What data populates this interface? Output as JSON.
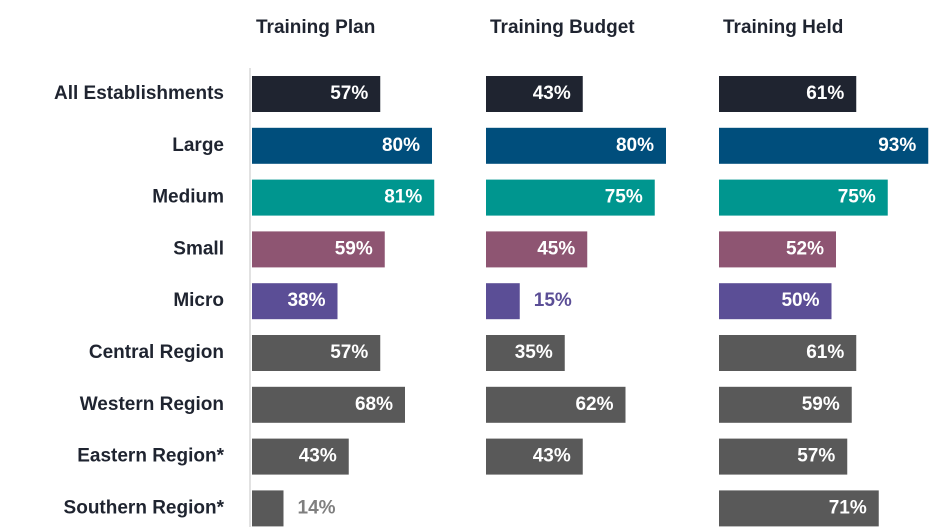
{
  "chart_data": {
    "type": "bar",
    "orientation": "horizontal",
    "xlim": [
      0,
      100
    ],
    "categories": [
      "All Establishments",
      "Large",
      "Medium",
      "Small",
      "Micro",
      "Central Region",
      "Western Region",
      "Eastern Region*",
      "Southern Region*"
    ],
    "colors": [
      "#1f2430",
      "#004e7c",
      "#00968f",
      "#8e5572",
      "#5b4e96",
      "#595959",
      "#595959",
      "#595959",
      "#595959"
    ],
    "series": [
      {
        "name": "Training Plan",
        "values": [
          57,
          80,
          81,
          59,
          38,
          57,
          68,
          43,
          14
        ],
        "value_labels": [
          "57%",
          "80%",
          "81%",
          "59%",
          "38%",
          "57%",
          "68%",
          "43%",
          "14%"
        ]
      },
      {
        "name": "Training Budget",
        "values": [
          43,
          80,
          75,
          45,
          15,
          35,
          62,
          43,
          null
        ],
        "value_labels": [
          "43%",
          "80%",
          "75%",
          "45%",
          "15%",
          "35%",
          "62%",
          "43%",
          null
        ]
      },
      {
        "name": "Training Held",
        "values": [
          61,
          93,
          75,
          52,
          50,
          61,
          59,
          57,
          71
        ],
        "value_labels": [
          "61%",
          "93%",
          "75%",
          "52%",
          "50%",
          "61%",
          "59%",
          "57%",
          "71%"
        ]
      }
    ]
  }
}
